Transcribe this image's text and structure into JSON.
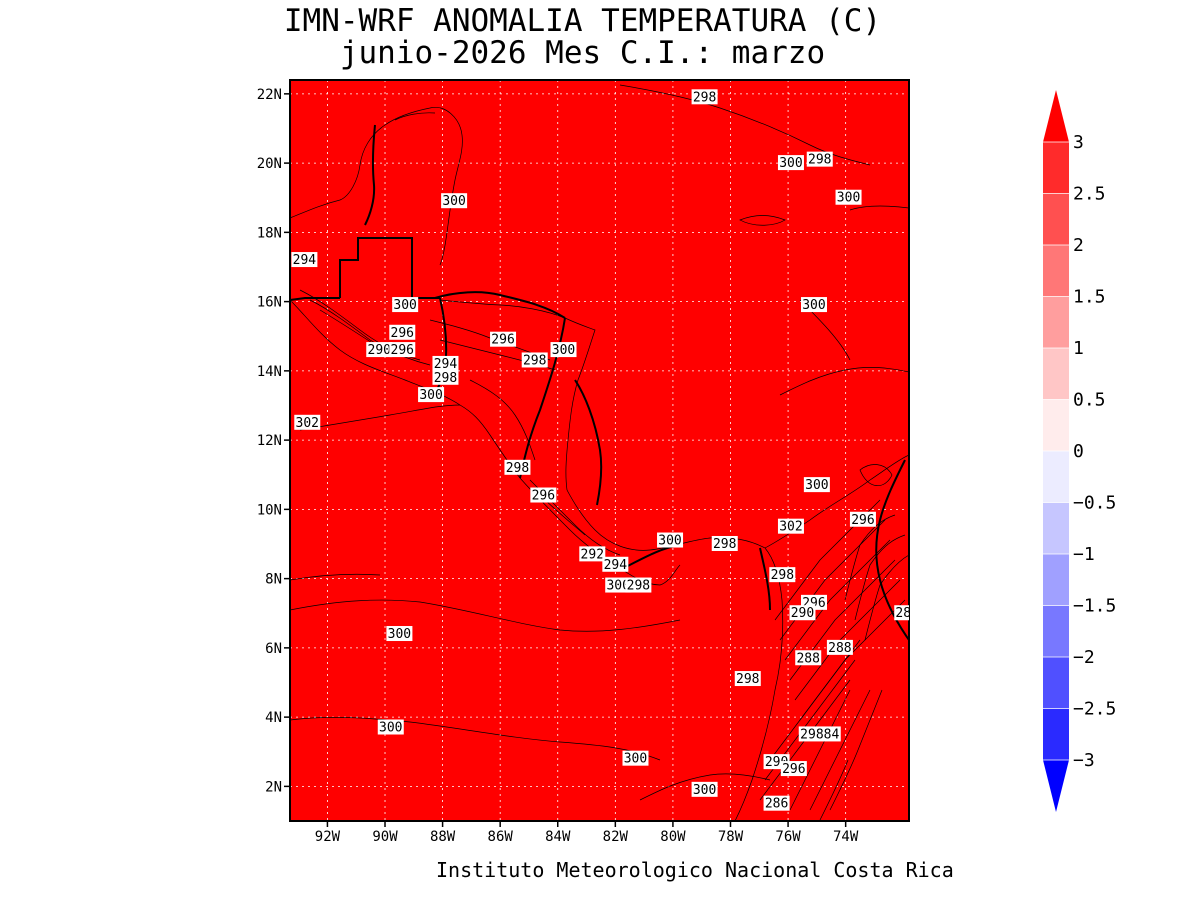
{
  "title": {
    "line1": "IMN-WRF  ANOMALIA TEMPERATURA (C)",
    "line2": "junio-2026 Mes C.I.: marzo"
  },
  "footer": "Instituto Meteorologico Nacional Costa Rica",
  "map": {
    "fill_color": "#ff0000",
    "lon_range": [
      -93.3,
      -71.8
    ],
    "lat_range": [
      1.0,
      22.4
    ],
    "lon_ticks": [
      {
        "value": -92,
        "label": "92W"
      },
      {
        "value": -90,
        "label": "90W"
      },
      {
        "value": -88,
        "label": "88W"
      },
      {
        "value": -86,
        "label": "86W"
      },
      {
        "value": -84,
        "label": "84W"
      },
      {
        "value": -82,
        "label": "82W"
      },
      {
        "value": -80,
        "label": "80W"
      },
      {
        "value": -78,
        "label": "78W"
      },
      {
        "value": -76,
        "label": "76W"
      },
      {
        "value": -74,
        "label": "74W"
      }
    ],
    "lat_ticks": [
      {
        "value": 2,
        "label": "2N"
      },
      {
        "value": 4,
        "label": "4N"
      },
      {
        "value": 6,
        "label": "6N"
      },
      {
        "value": 8,
        "label": "8N"
      },
      {
        "value": 10,
        "label": "10N"
      },
      {
        "value": 12,
        "label": "12N"
      },
      {
        "value": 14,
        "label": "14N"
      },
      {
        "value": 16,
        "label": "16N"
      },
      {
        "value": 18,
        "label": "18N"
      },
      {
        "value": 20,
        "label": "20N"
      },
      {
        "value": 22,
        "label": "22N"
      }
    ],
    "contour_labels": [
      {
        "text": "298",
        "lon": -78.9,
        "lat": 21.9
      },
      {
        "text": "300",
        "lon": -75.9,
        "lat": 20.0
      },
      {
        "text": "298",
        "lon": -74.9,
        "lat": 20.1
      },
      {
        "text": "300",
        "lon": -73.9,
        "lat": 19.0
      },
      {
        "text": "300",
        "lon": -87.6,
        "lat": 18.9
      },
      {
        "text": "294",
        "lon": -92.8,
        "lat": 17.2
      },
      {
        "text": "300",
        "lon": -89.3,
        "lat": 15.9
      },
      {
        "text": "300",
        "lon": -75.1,
        "lat": 15.9
      },
      {
        "text": "300",
        "lon": -83.8,
        "lat": 14.6
      },
      {
        "text": "296",
        "lon": -89.4,
        "lat": 15.1
      },
      {
        "text": "290",
        "lon": -90.2,
        "lat": 14.6
      },
      {
        "text": "296",
        "lon": -89.4,
        "lat": 14.6
      },
      {
        "text": "296",
        "lon": -85.9,
        "lat": 14.9
      },
      {
        "text": "294",
        "lon": -87.9,
        "lat": 14.2
      },
      {
        "text": "298",
        "lon": -84.8,
        "lat": 14.3
      },
      {
        "text": "298",
        "lon": -87.9,
        "lat": 13.8
      },
      {
        "text": "300",
        "lon": -88.4,
        "lat": 13.3
      },
      {
        "text": "302",
        "lon": -92.7,
        "lat": 12.5
      },
      {
        "text": "298",
        "lon": -85.4,
        "lat": 11.2
      },
      {
        "text": "300",
        "lon": -75.0,
        "lat": 10.7
      },
      {
        "text": "296",
        "lon": -84.5,
        "lat": 10.4
      },
      {
        "text": "302",
        "lon": -75.9,
        "lat": 9.5
      },
      {
        "text": "296",
        "lon": -73.4,
        "lat": 9.7
      },
      {
        "text": "300",
        "lon": -80.1,
        "lat": 9.1
      },
      {
        "text": "298",
        "lon": -78.2,
        "lat": 9.0
      },
      {
        "text": "292",
        "lon": -82.8,
        "lat": 8.7
      },
      {
        "text": "294",
        "lon": -82.0,
        "lat": 8.4
      },
      {
        "text": "298",
        "lon": -76.2,
        "lat": 8.1
      },
      {
        "text": "300",
        "lon": -81.9,
        "lat": 7.8
      },
      {
        "text": "298",
        "lon": -81.2,
        "lat": 7.8
      },
      {
        "text": "296",
        "lon": -75.1,
        "lat": 7.3
      },
      {
        "text": "290",
        "lon": -75.5,
        "lat": 7.0
      },
      {
        "text": "28",
        "lon": -72.0,
        "lat": 7.0
      },
      {
        "text": "300",
        "lon": -89.5,
        "lat": 6.4
      },
      {
        "text": "288",
        "lon": -74.2,
        "lat": 6.0
      },
      {
        "text": "288",
        "lon": -75.3,
        "lat": 5.7
      },
      {
        "text": "298",
        "lon": -77.4,
        "lat": 5.1
      },
      {
        "text": "300",
        "lon": -89.8,
        "lat": 3.7
      },
      {
        "text": "29884",
        "lon": -74.9,
        "lat": 3.5
      },
      {
        "text": "300",
        "lon": -81.3,
        "lat": 2.8
      },
      {
        "text": "290",
        "lon": -76.4,
        "lat": 2.7
      },
      {
        "text": "296",
        "lon": -75.8,
        "lat": 2.5
      },
      {
        "text": "300",
        "lon": -78.9,
        "lat": 1.9
      },
      {
        "text": "286",
        "lon": -76.4,
        "lat": 1.5
      }
    ]
  },
  "colorbar": {
    "levels": [
      "3",
      "2.5",
      "2",
      "1.5",
      "1",
      "0.5",
      "0",
      "−0.5",
      "−1",
      "−1.5",
      "−2",
      "−2.5",
      "−3"
    ],
    "colors": [
      "#ff2b2b",
      "#ff5050",
      "#ff7777",
      "#ff9e9e",
      "#ffc6c6",
      "#ffecec",
      "#ececff",
      "#c6c6ff",
      "#a0a0ff",
      "#7878ff",
      "#5050ff",
      "#2a2aff"
    ],
    "over_color": "#ff0000",
    "under_color": "#0000ff"
  }
}
